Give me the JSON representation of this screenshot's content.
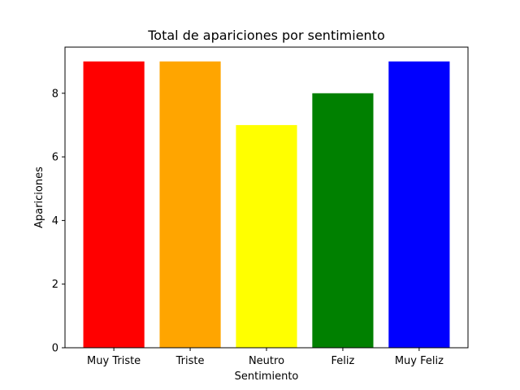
{
  "chart_data": {
    "type": "bar",
    "title": "Total de apariciones por sentimiento",
    "xlabel": "Sentimiento",
    "ylabel": "Apariciones",
    "categories": [
      "Muy Triste",
      "Triste",
      "Neutro",
      "Feliz",
      "Muy Feliz"
    ],
    "values": [
      9,
      9,
      7,
      8,
      9
    ],
    "colors": [
      "#ff0000",
      "#ffa500",
      "#ffff00",
      "#008000",
      "#0000ff"
    ],
    "ylim": [
      0,
      9.45
    ],
    "yticks": [
      0,
      2,
      4,
      6,
      8
    ],
    "grid": false,
    "legend": "none"
  }
}
